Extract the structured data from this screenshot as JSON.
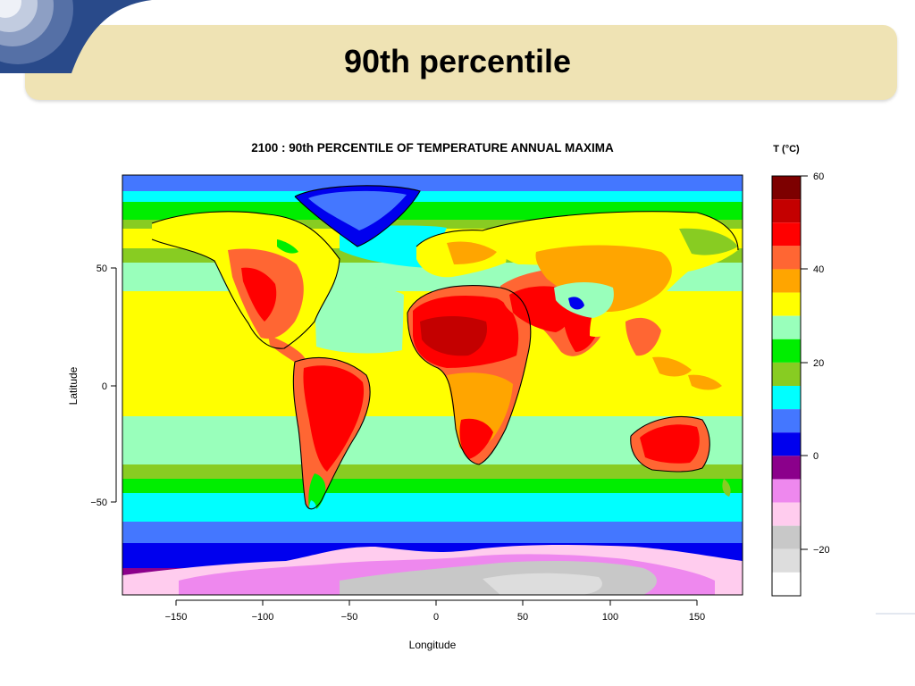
{
  "slide": {
    "title": "90th percentile"
  },
  "figure": {
    "title": "2100 : 90th PERCENTILE OF TEMPERATURE ANNUAL MAXIMA",
    "xlabel": "Longitude",
    "ylabel": "Latitude",
    "x_ticks": [
      "−150",
      "−100",
      "−50",
      "0",
      "50",
      "100",
      "150"
    ],
    "y_ticks": [
      "50",
      "0",
      "−50"
    ]
  },
  "legend": {
    "title": "T (°C)",
    "labels": [
      "60",
      "40",
      "20",
      "0",
      "−20"
    ],
    "colors": [
      "#7d0000",
      "#c40000",
      "#ff0000",
      "#ff6633",
      "#ffa500",
      "#ffff00",
      "#99ffbb",
      "#00ee00",
      "#88cc22",
      "#00ffff",
      "#4477ff",
      "#0000ee",
      "#8b008b",
      "#ee88ee",
      "#ffccee",
      "#c8c8c8",
      "#dddddd",
      "#ffffff"
    ]
  },
  "chart_data": {
    "type": "heatmap",
    "title": "2100 : 90th PERCENTILE OF TEMPERATURE ANNUAL MAXIMA",
    "xlabel": "Longitude",
    "ylabel": "Latitude",
    "xlim": [
      -180,
      180
    ],
    "ylim": [
      -90,
      90
    ],
    "colorbar": {
      "label": "T (°C)",
      "range": [
        -30,
        60
      ],
      "step": 5,
      "ticks": [
        60,
        40,
        20,
        0,
        -20
      ]
    },
    "grid": false
  }
}
